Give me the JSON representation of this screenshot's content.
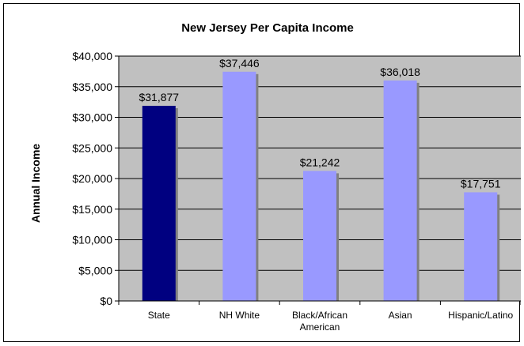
{
  "chart_data": {
    "type": "bar",
    "title": "New Jersey Per Capita Income",
    "xlabel": "",
    "ylabel": "Annual Income",
    "ylim": [
      0,
      40000
    ],
    "y_ticks": [
      "$0",
      "$5,000",
      "$10,000",
      "$15,000",
      "$20,000",
      "$25,000",
      "$30,000",
      "$35,000",
      "$40,000"
    ],
    "categories": [
      [
        "State"
      ],
      [
        "NH White"
      ],
      [
        "Black/African",
        "American"
      ],
      [
        "Asian"
      ],
      [
        "Hispanic/Latino"
      ]
    ],
    "values": [
      31877,
      37446,
      21242,
      36018,
      17751
    ],
    "data_labels": [
      "$31,877",
      "$37,446",
      "$21,242",
      "$36,018",
      "$17,751"
    ],
    "grid": true,
    "colors": {
      "plot_background": "#c0c0c0",
      "bars": [
        "#000080",
        "#9999ff",
        "#9999ff",
        "#9999ff",
        "#9999ff"
      ],
      "gridline": "#000000"
    }
  }
}
